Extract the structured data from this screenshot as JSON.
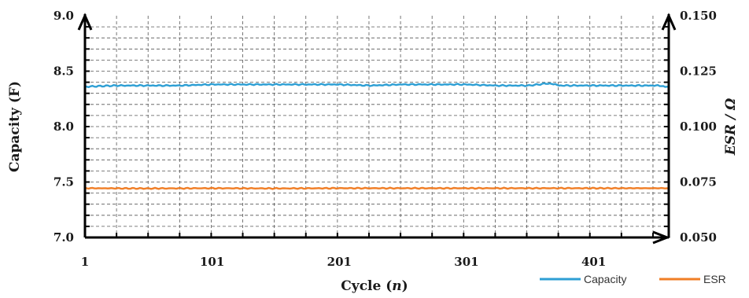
{
  "chart_data": {
    "type": "line",
    "title": "",
    "xlabel": "Cycle",
    "xlabel_var": "n",
    "ylabel_left": "Capacity (F)",
    "ylabel_right": "ESR / Ω",
    "x_ticks": [
      "1",
      "101",
      "201",
      "301",
      "401"
    ],
    "y_left_ticks": [
      "7.0",
      "7.5",
      "8.0",
      "8.5",
      "9.0"
    ],
    "y_right_ticks": [
      "0.050",
      "0.075",
      "0.100",
      "0.125",
      "0.150"
    ],
    "xlim": [
      1,
      460
    ],
    "ylim_left": [
      7.0,
      9.0
    ],
    "ylim_right": [
      0.05,
      0.15
    ],
    "grid": true,
    "legend_position": "bottom-right",
    "series": [
      {
        "name": "Capacity",
        "axis": "left",
        "color": "#2e9fd4",
        "x": [
          1,
          25,
          50,
          75,
          100,
          125,
          150,
          175,
          200,
          225,
          250,
          275,
          300,
          325,
          350,
          365,
          375,
          400,
          425,
          450,
          460
        ],
        "y": [
          8.36,
          8.37,
          8.37,
          8.37,
          8.38,
          8.38,
          8.38,
          8.38,
          8.38,
          8.37,
          8.38,
          8.38,
          8.38,
          8.37,
          8.37,
          8.39,
          8.37,
          8.37,
          8.37,
          8.37,
          8.36
        ]
      },
      {
        "name": "ESR",
        "axis": "right",
        "color": "#f07e26",
        "x": [
          1,
          50,
          100,
          150,
          200,
          250,
          300,
          350,
          400,
          460
        ],
        "y": [
          0.0722,
          0.0721,
          0.0722,
          0.0721,
          0.0722,
          0.0722,
          0.0722,
          0.0722,
          0.0722,
          0.0722
        ]
      }
    ]
  }
}
